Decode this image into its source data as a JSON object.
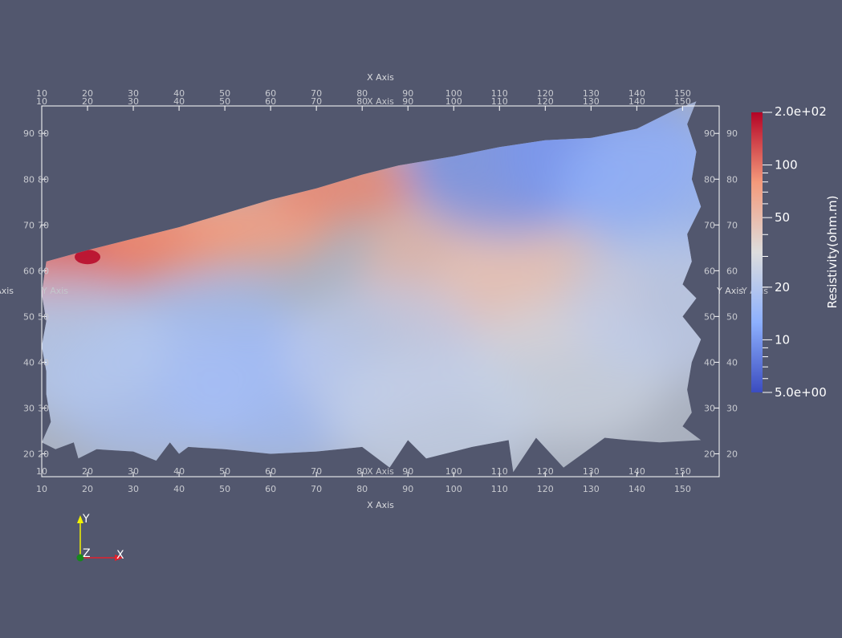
{
  "chart_data": {
    "type": "heatmap",
    "title": "",
    "xlabel": "X Axis",
    "ylabel": "Y Axis",
    "xlim": [
      10,
      158
    ],
    "ylim": [
      15,
      96
    ],
    "x_ticks": [
      10,
      20,
      30,
      40,
      50,
      60,
      70,
      80,
      90,
      100,
      110,
      120,
      130,
      140,
      150
    ],
    "y_ticks": [
      20,
      30,
      40,
      50,
      60,
      70,
      80,
      90
    ],
    "grid": false,
    "colorbar": {
      "label": "Resistivity(ohm.m)",
      "scale": "log",
      "range": [
        5,
        200
      ],
      "range_labels": [
        "2.0e+02",
        "5.0e+00"
      ],
      "tick_values": [
        100,
        50,
        20,
        10
      ],
      "tick_labels": [
        "100",
        "50",
        "20",
        "10"
      ],
      "colors": [
        "#3b4cc0",
        "#8db0fe",
        "#dddddd",
        "#f49a7b",
        "#b40426"
      ]
    },
    "boundary": {
      "top": [
        [
          11,
          62
        ],
        [
          20,
          64.5
        ],
        [
          30,
          67
        ],
        [
          40,
          69.5
        ],
        [
          50,
          72.5
        ],
        [
          60,
          75.5
        ],
        [
          70,
          78
        ],
        [
          80,
          81
        ],
        [
          88,
          83
        ],
        [
          100,
          85
        ],
        [
          110,
          87
        ],
        [
          120,
          88.5
        ],
        [
          130,
          89
        ],
        [
          140,
          91
        ],
        [
          148,
          95
        ],
        [
          153,
          97
        ]
      ],
      "right": [
        [
          153,
          97
        ],
        [
          151,
          92
        ],
        [
          153,
          86
        ],
        [
          152,
          80
        ],
        [
          154,
          74
        ],
        [
          151,
          68
        ],
        [
          152,
          62
        ],
        [
          150,
          57
        ],
        [
          153,
          54
        ],
        [
          150,
          50
        ],
        [
          154,
          45
        ],
        [
          152,
          40
        ],
        [
          151,
          34
        ],
        [
          152,
          29
        ],
        [
          150,
          26
        ],
        [
          154,
          23
        ]
      ],
      "bottom": [
        [
          154,
          23
        ],
        [
          145,
          22.5
        ],
        [
          138,
          23
        ],
        [
          133,
          23.5
        ],
        [
          124,
          17
        ],
        [
          118,
          23.5
        ],
        [
          113,
          16
        ],
        [
          112,
          23
        ],
        [
          104,
          21.5
        ],
        [
          94,
          19
        ],
        [
          90,
          23
        ],
        [
          86,
          17
        ],
        [
          80,
          21.5
        ],
        [
          70,
          20.5
        ],
        [
          60,
          20
        ],
        [
          50,
          21
        ],
        [
          42,
          21.5
        ],
        [
          40,
          20
        ],
        [
          38,
          22.5
        ],
        [
          35,
          18.5
        ],
        [
          30,
          20.5
        ],
        [
          22,
          21
        ],
        [
          18,
          19
        ],
        [
          17,
          22.5
        ],
        [
          13,
          21
        ],
        [
          10,
          22.5
        ]
      ],
      "left": [
        [
          10,
          22.5
        ],
        [
          12,
          27
        ],
        [
          11,
          33
        ],
        [
          11,
          38
        ],
        [
          10,
          43.5
        ],
        [
          11,
          49
        ],
        [
          10,
          55
        ],
        [
          11,
          62
        ]
      ]
    },
    "field": [
      {
        "x": 20,
        "y": 63,
        "value": 190
      },
      {
        "x": 13,
        "y": 61,
        "value": 95
      },
      {
        "x": 28,
        "y": 66,
        "value": 110
      },
      {
        "x": 38,
        "y": 67.5,
        "value": 85
      },
      {
        "x": 57,
        "y": 70,
        "value": 75
      },
      {
        "x": 76,
        "y": 79,
        "value": 90
      },
      {
        "x": 102,
        "y": 60,
        "value": 55
      },
      {
        "x": 118,
        "y": 56,
        "value": 45
      },
      {
        "x": 112,
        "y": 83,
        "value": 9
      },
      {
        "x": 133,
        "y": 86,
        "value": 10
      },
      {
        "x": 146,
        "y": 78,
        "value": 14
      },
      {
        "x": 48,
        "y": 42,
        "value": 16
      },
      {
        "x": 62,
        "y": 33,
        "value": 15
      },
      {
        "x": 34,
        "y": 34,
        "value": 17
      },
      {
        "x": 85,
        "y": 42,
        "value": 22
      },
      {
        "x": 125,
        "y": 38,
        "value": 27
      },
      {
        "x": 148,
        "y": 52,
        "value": 22
      },
      {
        "x": 15,
        "y": 44,
        "value": 20
      },
      {
        "x": 95,
        "y": 28,
        "value": 24
      }
    ]
  },
  "orientation_axes": {
    "y_label": "Y",
    "x_label": "X",
    "z_label": "Z",
    "colors": {
      "x": "#e2212d",
      "y": "#f2f200",
      "z": "#16881c"
    }
  }
}
